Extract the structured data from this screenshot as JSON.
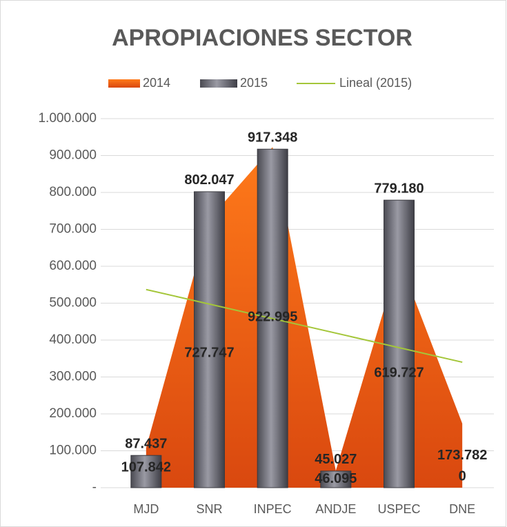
{
  "chart_data": {
    "type": "bar-area",
    "title": "APROPIACIONES SECTOR",
    "categories": [
      "MJD",
      "SNR",
      "INPEC",
      "ANDJE",
      "USPEC",
      "DNE"
    ],
    "series": [
      {
        "name": "2014",
        "type": "area",
        "color": "#e8590c",
        "values": [
          107842,
          727747,
          922995,
          46095,
          619727,
          173782
        ],
        "value_labels": [
          "107.842",
          "727.747",
          "922.995",
          "46.095",
          "619.727",
          "173.782"
        ]
      },
      {
        "name": "2015",
        "type": "bar",
        "color": "#6e6e78",
        "values": [
          87437,
          802047,
          917348,
          45027,
          779180,
          0
        ],
        "value_labels": [
          "87.437",
          "802.047",
          "917.348",
          "45.027",
          "779.180",
          "0"
        ]
      }
    ],
    "trendline": {
      "name": "Lineal (2015)",
      "color": "#a4c639"
    },
    "ylim": [
      0,
      1000000
    ],
    "yticks": [
      {
        "value": 0,
        "label": "-"
      },
      {
        "value": 100000,
        "label": "100.000"
      },
      {
        "value": 200000,
        "label": "200.000"
      },
      {
        "value": 300000,
        "label": "300.000"
      },
      {
        "value": 400000,
        "label": "400.000"
      },
      {
        "value": 500000,
        "label": "500.000"
      },
      {
        "value": 600000,
        "label": "600.000"
      },
      {
        "value": 700000,
        "label": "700.000"
      },
      {
        "value": 800000,
        "label": "800.000"
      },
      {
        "value": 900000,
        "label": "900.000"
      },
      {
        "value": 1000000,
        "label": "1.000.000"
      }
    ],
    "grid": true,
    "legend": "top"
  }
}
